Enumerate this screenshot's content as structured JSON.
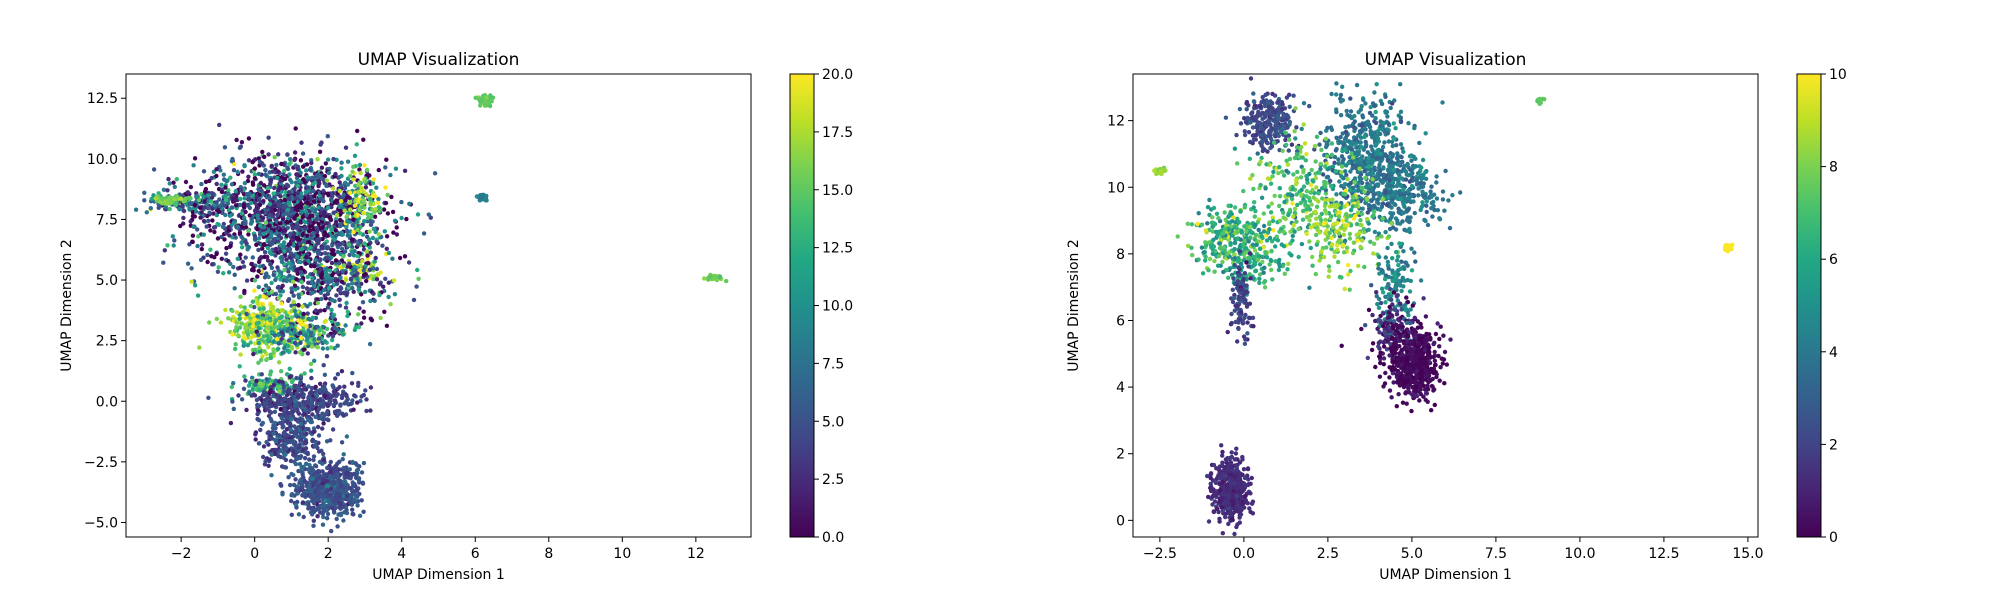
{
  "chart_data": [
    {
      "type": "scatter",
      "title": "UMAP Visualization",
      "xlabel": "UMAP Dimension 1",
      "ylabel": "UMAP Dimension 2",
      "xlim": [
        -3.5,
        13.5
      ],
      "ylim": [
        -5.6,
        13.5
      ],
      "xticks": [
        -2,
        0,
        2,
        4,
        6,
        8,
        10,
        12
      ],
      "xtick_labels": [
        "−2",
        "0",
        "2",
        "4",
        "6",
        "8",
        "10",
        "12"
      ],
      "yticks": [
        -5.0,
        -2.5,
        0.0,
        2.5,
        5.0,
        7.5,
        10.0,
        12.5
      ],
      "ytick_labels": [
        "−5.0",
        "−2.5",
        "0.0",
        "2.5",
        "5.0",
        "7.5",
        "10.0",
        "12.5"
      ],
      "colorbar": {
        "colormap": "viridis",
        "range": [
          0,
          20
        ],
        "ticks": [
          0,
          2.5,
          5,
          7.5,
          10,
          12.5,
          15,
          17.5,
          20
        ],
        "tick_labels": [
          "0.0",
          "2.5",
          "5.0",
          "7.5",
          "10.0",
          "12.5",
          "15.0",
          "17.5",
          "20.0"
        ]
      },
      "clusters": [
        {
          "x": 1.0,
          "y": 7.8,
          "sx": 1.3,
          "sy": 1.2,
          "n": 1500,
          "c": 4,
          "cs": 5
        },
        {
          "x": -1.7,
          "y": 8.2,
          "sx": 0.6,
          "sy": 0.25,
          "n": 160,
          "c": 6,
          "cs": 4
        },
        {
          "x": -2.3,
          "y": 8.3,
          "sx": 0.25,
          "sy": 0.1,
          "n": 60,
          "c": 15.5,
          "cs": 1
        },
        {
          "x": 2.9,
          "y": 8.2,
          "sx": 0.3,
          "sy": 0.6,
          "n": 90,
          "c": 17,
          "cs": 3
        },
        {
          "x": 3.0,
          "y": 5.4,
          "sx": 0.3,
          "sy": 0.3,
          "n": 60,
          "c": 18,
          "cs": 2
        },
        {
          "x": 1.8,
          "y": 5.2,
          "sx": 1.0,
          "sy": 0.9,
          "n": 500,
          "c": 5,
          "cs": 5
        },
        {
          "x": 0.3,
          "y": 3.1,
          "sx": 0.5,
          "sy": 0.6,
          "n": 320,
          "c": 16,
          "cs": 2.5
        },
        {
          "x": 1.3,
          "y": 2.8,
          "sx": 0.6,
          "sy": 0.5,
          "n": 200,
          "c": 11,
          "cs": 5
        },
        {
          "x": 0.5,
          "y": 0.7,
          "sx": 0.4,
          "sy": 0.3,
          "n": 100,
          "c": 13,
          "cs": 2
        },
        {
          "x": 1.3,
          "y": 0.0,
          "sx": 0.8,
          "sy": 0.45,
          "n": 400,
          "c": 4,
          "cs": 1.5
        },
        {
          "x": 1.0,
          "y": -1.6,
          "sx": 0.4,
          "sy": 0.6,
          "n": 250,
          "c": 4.5,
          "cs": 1.5
        },
        {
          "x": 2.0,
          "y": -3.6,
          "sx": 0.45,
          "sy": 0.6,
          "n": 600,
          "c": 5,
          "cs": 1.2
        },
        {
          "x": 6.3,
          "y": 12.4,
          "sx": 0.1,
          "sy": 0.12,
          "n": 40,
          "c": 15,
          "cs": 0.5
        },
        {
          "x": 6.2,
          "y": 8.4,
          "sx": 0.08,
          "sy": 0.07,
          "n": 30,
          "c": 9,
          "cs": 0.5
        },
        {
          "x": 12.5,
          "y": 5.1,
          "sx": 0.12,
          "sy": 0.05,
          "n": 35,
          "c": 15.5,
          "cs": 0.5
        }
      ]
    },
    {
      "type": "scatter",
      "title": "UMAP Visualization",
      "xlabel": "UMAP Dimension 1",
      "ylabel": "UMAP Dimension 2",
      "xlim": [
        -3.3,
        15.3
      ],
      "ylim": [
        -0.5,
        13.4
      ],
      "xticks": [
        -2.5,
        0,
        2.5,
        5,
        7.5,
        10,
        12.5,
        15
      ],
      "xtick_labels": [
        "−2.5",
        "0.0",
        "2.5",
        "5.0",
        "7.5",
        "10.0",
        "12.5",
        "15.0"
      ],
      "yticks": [
        0,
        2,
        4,
        6,
        8,
        10,
        12
      ],
      "ytick_labels": [
        "0",
        "2",
        "4",
        "6",
        "8",
        "10",
        "12"
      ],
      "colorbar": {
        "colormap": "viridis",
        "range": [
          0,
          10
        ],
        "ticks": [
          0,
          2,
          4,
          6,
          8,
          10
        ],
        "tick_labels": [
          "0",
          "2",
          "4",
          "6",
          "8",
          "10"
        ]
      },
      "clusters": [
        {
          "x": 0.7,
          "y": 12.0,
          "sx": 0.4,
          "sy": 0.4,
          "n": 250,
          "c": 2.2,
          "cs": 0.5
        },
        {
          "x": 3.7,
          "y": 11.0,
          "sx": 0.7,
          "sy": 0.8,
          "n": 500,
          "c": 4,
          "cs": 0.7
        },
        {
          "x": 4.6,
          "y": 9.8,
          "sx": 0.6,
          "sy": 0.6,
          "n": 300,
          "c": 4,
          "cs": 0.7
        },
        {
          "x": 1.8,
          "y": 9.6,
          "sx": 0.9,
          "sy": 0.9,
          "n": 300,
          "c": 7,
          "cs": 1.4
        },
        {
          "x": -0.3,
          "y": 8.5,
          "sx": 0.55,
          "sy": 0.5,
          "n": 250,
          "c": 6.5,
          "cs": 1.3
        },
        {
          "x": 0.2,
          "y": 7.8,
          "sx": 0.5,
          "sy": 0.5,
          "n": 120,
          "c": 6,
          "cs": 1
        },
        {
          "x": 3.0,
          "y": 8.8,
          "sx": 0.6,
          "sy": 0.6,
          "n": 150,
          "c": 8,
          "cs": 1
        },
        {
          "x": -0.1,
          "y": 6.7,
          "sx": 0.15,
          "sy": 0.6,
          "n": 100,
          "c": 2,
          "cs": 0.6
        },
        {
          "x": 4.5,
          "y": 7.2,
          "sx": 0.3,
          "sy": 0.6,
          "n": 120,
          "c": 4.5,
          "cs": 0.8
        },
        {
          "x": 4.5,
          "y": 5.6,
          "sx": 0.4,
          "sy": 0.5,
          "n": 180,
          "c": 1,
          "cs": 1.2
        },
        {
          "x": 5.1,
          "y": 4.7,
          "sx": 0.35,
          "sy": 0.5,
          "n": 500,
          "c": 0.2,
          "cs": 0.3
        },
        {
          "x": -0.4,
          "y": 0.9,
          "sx": 0.25,
          "sy": 0.45,
          "n": 500,
          "c": 1.2,
          "cs": 0.3
        },
        {
          "x": -2.5,
          "y": 10.5,
          "sx": 0.08,
          "sy": 0.06,
          "n": 25,
          "c": 8.5,
          "cs": 0.3
        },
        {
          "x": 8.8,
          "y": 12.6,
          "sx": 0.05,
          "sy": 0.05,
          "n": 15,
          "c": 7.5,
          "cs": 0.2
        },
        {
          "x": 14.4,
          "y": 8.2,
          "sx": 0.06,
          "sy": 0.07,
          "n": 20,
          "c": 10,
          "cs": 0.05
        }
      ]
    }
  ]
}
